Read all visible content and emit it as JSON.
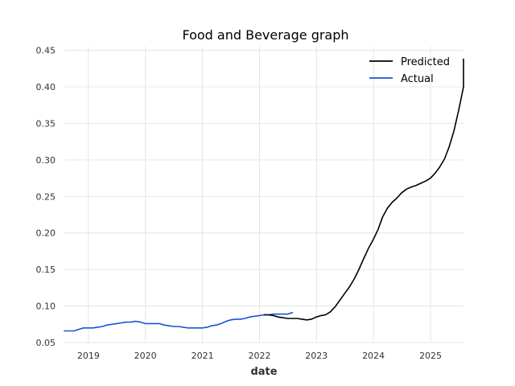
{
  "chart_data": {
    "type": "line",
    "title": "Food and Beverage graph",
    "xlabel": "date",
    "ylabel": "",
    "xlim": [
      "2018-07-31",
      "2025-07-31"
    ],
    "ylim": [
      0.05,
      0.455
    ],
    "x_ticks": [
      "2019",
      "2020",
      "2021",
      "2022",
      "2023",
      "2024",
      "2025"
    ],
    "y_ticks": [
      "0.05",
      "0.10",
      "0.15",
      "0.20",
      "0.25",
      "0.30",
      "0.35",
      "0.40",
      "0.45"
    ],
    "grid": true,
    "legend_position": "top-right",
    "series": [
      {
        "name": "Predicted",
        "color": "#000000",
        "points": [
          [
            "2022-01-31",
            0.088
          ],
          [
            "2022-02-28",
            0.088
          ],
          [
            "2022-03-31",
            0.087
          ],
          [
            "2022-04-30",
            0.085
          ],
          [
            "2022-05-31",
            0.084
          ],
          [
            "2022-06-30",
            0.083
          ],
          [
            "2022-07-31",
            0.083
          ],
          [
            "2022-08-31",
            0.083
          ],
          [
            "2022-09-30",
            0.082
          ],
          [
            "2022-10-31",
            0.081
          ],
          [
            "2022-11-30",
            0.082
          ],
          [
            "2022-12-31",
            0.085
          ],
          [
            "2023-01-31",
            0.087
          ],
          [
            "2023-02-28",
            0.088
          ],
          [
            "2023-03-31",
            0.092
          ],
          [
            "2023-04-30",
            0.099
          ],
          [
            "2023-05-31",
            0.108
          ],
          [
            "2023-06-30",
            0.117
          ],
          [
            "2023-07-31",
            0.126
          ],
          [
            "2023-08-31",
            0.137
          ],
          [
            "2023-09-30",
            0.15
          ],
          [
            "2023-10-31",
            0.165
          ],
          [
            "2023-11-30",
            0.179
          ],
          [
            "2023-12-31",
            0.191
          ],
          [
            "2024-01-31",
            0.205
          ],
          [
            "2024-02-29",
            0.222
          ],
          [
            "2024-03-31",
            0.234
          ],
          [
            "2024-04-30",
            0.242
          ],
          [
            "2024-05-31",
            0.248
          ],
          [
            "2024-06-30",
            0.255
          ],
          [
            "2024-07-31",
            0.26
          ],
          [
            "2024-08-31",
            0.263
          ],
          [
            "2024-09-30",
            0.265
          ],
          [
            "2024-10-31",
            0.268
          ],
          [
            "2024-11-30",
            0.271
          ],
          [
            "2024-12-31",
            0.275
          ],
          [
            "2025-01-31",
            0.282
          ],
          [
            "2025-02-28",
            0.29
          ],
          [
            "2025-03-31",
            0.301
          ],
          [
            "2025-04-30",
            0.318
          ],
          [
            "2025-05-31",
            0.34
          ],
          [
            "2025-06-30",
            0.368
          ],
          [
            "2025-07-31",
            0.4
          ],
          [
            "2025-08-31",
            0.438
          ]
        ]
      },
      {
        "name": "Actual",
        "color": "#1f4fd8",
        "points": [
          [
            "2018-07-31",
            0.066
          ],
          [
            "2018-08-31",
            0.066
          ],
          [
            "2018-09-30",
            0.066
          ],
          [
            "2018-10-31",
            0.068
          ],
          [
            "2018-11-30",
            0.07
          ],
          [
            "2018-12-31",
            0.07
          ],
          [
            "2019-01-31",
            0.07
          ],
          [
            "2019-02-28",
            0.071
          ],
          [
            "2019-03-31",
            0.072
          ],
          [
            "2019-04-30",
            0.074
          ],
          [
            "2019-05-31",
            0.075
          ],
          [
            "2019-06-30",
            0.076
          ],
          [
            "2019-07-31",
            0.077
          ],
          [
            "2019-08-31",
            0.078
          ],
          [
            "2019-09-30",
            0.078
          ],
          [
            "2019-10-31",
            0.079
          ],
          [
            "2019-11-30",
            0.078
          ],
          [
            "2019-12-31",
            0.076
          ],
          [
            "2020-01-31",
            0.076
          ],
          [
            "2020-02-29",
            0.076
          ],
          [
            "2020-03-31",
            0.076
          ],
          [
            "2020-04-30",
            0.074
          ],
          [
            "2020-05-31",
            0.073
          ],
          [
            "2020-06-30",
            0.072
          ],
          [
            "2020-07-31",
            0.072
          ],
          [
            "2020-08-31",
            0.071
          ],
          [
            "2020-09-30",
            0.07
          ],
          [
            "2020-10-31",
            0.07
          ],
          [
            "2020-11-30",
            0.07
          ],
          [
            "2020-12-31",
            0.07
          ],
          [
            "2021-01-31",
            0.071
          ],
          [
            "2021-02-28",
            0.073
          ],
          [
            "2021-03-31",
            0.074
          ],
          [
            "2021-04-30",
            0.076
          ],
          [
            "2021-05-31",
            0.079
          ],
          [
            "2021-06-30",
            0.081
          ],
          [
            "2021-07-31",
            0.082
          ],
          [
            "2021-08-31",
            0.082
          ],
          [
            "2021-09-30",
            0.083
          ],
          [
            "2021-10-31",
            0.085
          ],
          [
            "2021-11-30",
            0.086
          ],
          [
            "2021-12-31",
            0.087
          ],
          [
            "2022-01-31",
            0.088
          ],
          [
            "2022-02-28",
            0.088
          ],
          [
            "2022-03-31",
            0.089
          ],
          [
            "2022-04-30",
            0.089
          ],
          [
            "2022-05-31",
            0.089
          ],
          [
            "2022-06-30",
            0.089
          ],
          [
            "2022-07-31",
            0.091
          ]
        ]
      }
    ]
  }
}
